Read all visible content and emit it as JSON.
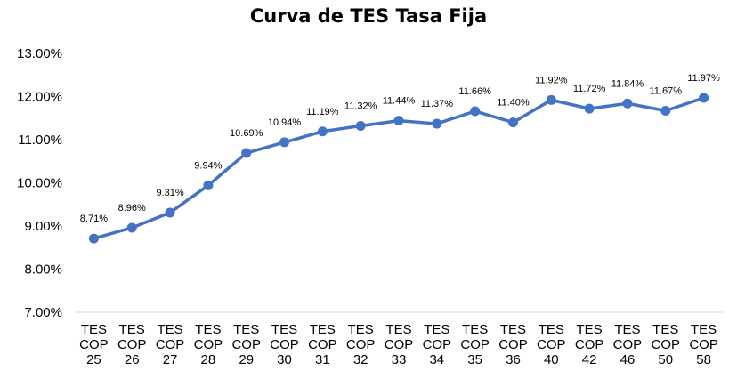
{
  "chart_data": {
    "type": "line",
    "title": "Curva de TES Tasa Fija",
    "xlabel": "",
    "ylabel": "",
    "ylim": [
      7.0,
      13.0
    ],
    "y_tick_values": [
      7,
      8,
      9,
      10,
      11,
      12,
      13
    ],
    "y_tick_labels": [
      "7.00%",
      "8.00%",
      "9.00%",
      "10.00%",
      "11.00%",
      "12.00%",
      "13.00%"
    ],
    "categories": [
      [
        "TES",
        "COP",
        "25"
      ],
      [
        "TES",
        "COP",
        "26"
      ],
      [
        "TES",
        "COP",
        "27"
      ],
      [
        "TES",
        "COP",
        "28"
      ],
      [
        "TES",
        "COP",
        "29"
      ],
      [
        "TES",
        "COP",
        "30"
      ],
      [
        "TES",
        "COP",
        "31"
      ],
      [
        "TES",
        "COP",
        "32"
      ],
      [
        "TES",
        "COP",
        "33"
      ],
      [
        "TES",
        "COP",
        "34"
      ],
      [
        "TES",
        "COP",
        "35"
      ],
      [
        "TES",
        "COP",
        "36"
      ],
      [
        "TES",
        "COP",
        "40"
      ],
      [
        "TES",
        "COP",
        "42"
      ],
      [
        "TES",
        "COP",
        "46"
      ],
      [
        "TES",
        "COP",
        "50"
      ],
      [
        "TES",
        "COP",
        "58"
      ]
    ],
    "series": [
      {
        "values": [
          8.71,
          8.96,
          9.31,
          9.94,
          10.69,
          10.94,
          11.19,
          11.32,
          11.44,
          11.37,
          11.66,
          11.4,
          11.92,
          11.72,
          11.84,
          11.67,
          11.97
        ],
        "labels": [
          "8.71%",
          "8.96%",
          "9.31%",
          "9.94%",
          "10.69%",
          "10.94%",
          "11.19%",
          "11.32%",
          "11.44%",
          "11.37%",
          "11.66%",
          "11.40%",
          "11.92%",
          "11.72%",
          "11.84%",
          "11.67%",
          "11.97%"
        ]
      }
    ],
    "series_color": "#4472C4",
    "grid": false,
    "legend": "none"
  }
}
